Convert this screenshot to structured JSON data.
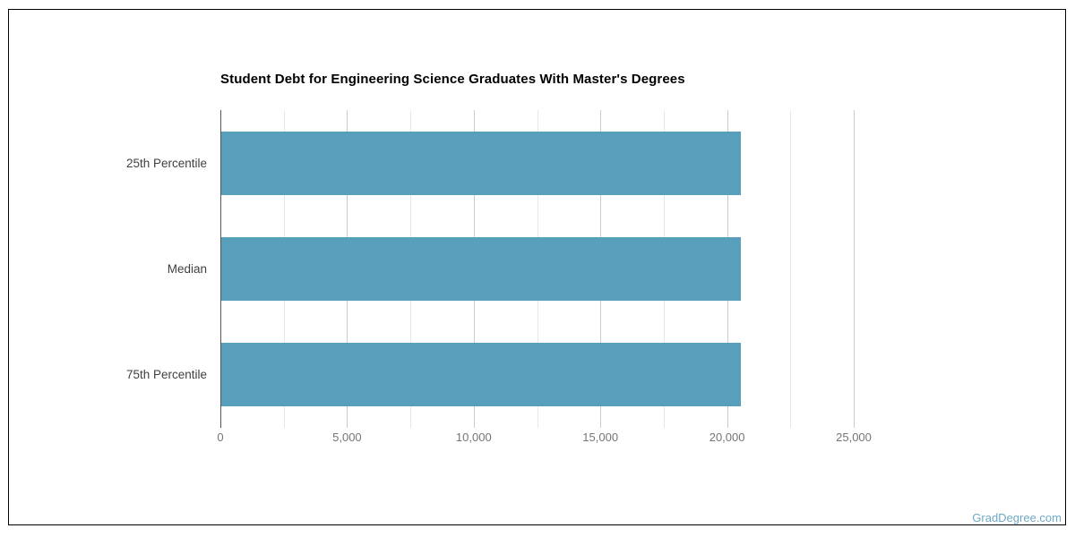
{
  "chart_data": {
    "type": "bar",
    "orientation": "horizontal",
    "title": "Student Debt for Engineering Science Graduates With Master's Degrees",
    "categories": [
      "25th Percentile",
      "Median",
      "75th Percentile"
    ],
    "values": [
      20500,
      20500,
      20500
    ],
    "xlabel": "",
    "ylabel": "",
    "xlim": [
      0,
      25000
    ],
    "x_ticks": [
      0,
      5000,
      10000,
      15000,
      20000,
      25000
    ],
    "x_minor_gridline_step": 2500,
    "grid": true,
    "legend": "none",
    "bar_color": "#589fbc"
  },
  "watermark": {
    "text": "GradDegree.com",
    "color": "#6fa9c6"
  }
}
